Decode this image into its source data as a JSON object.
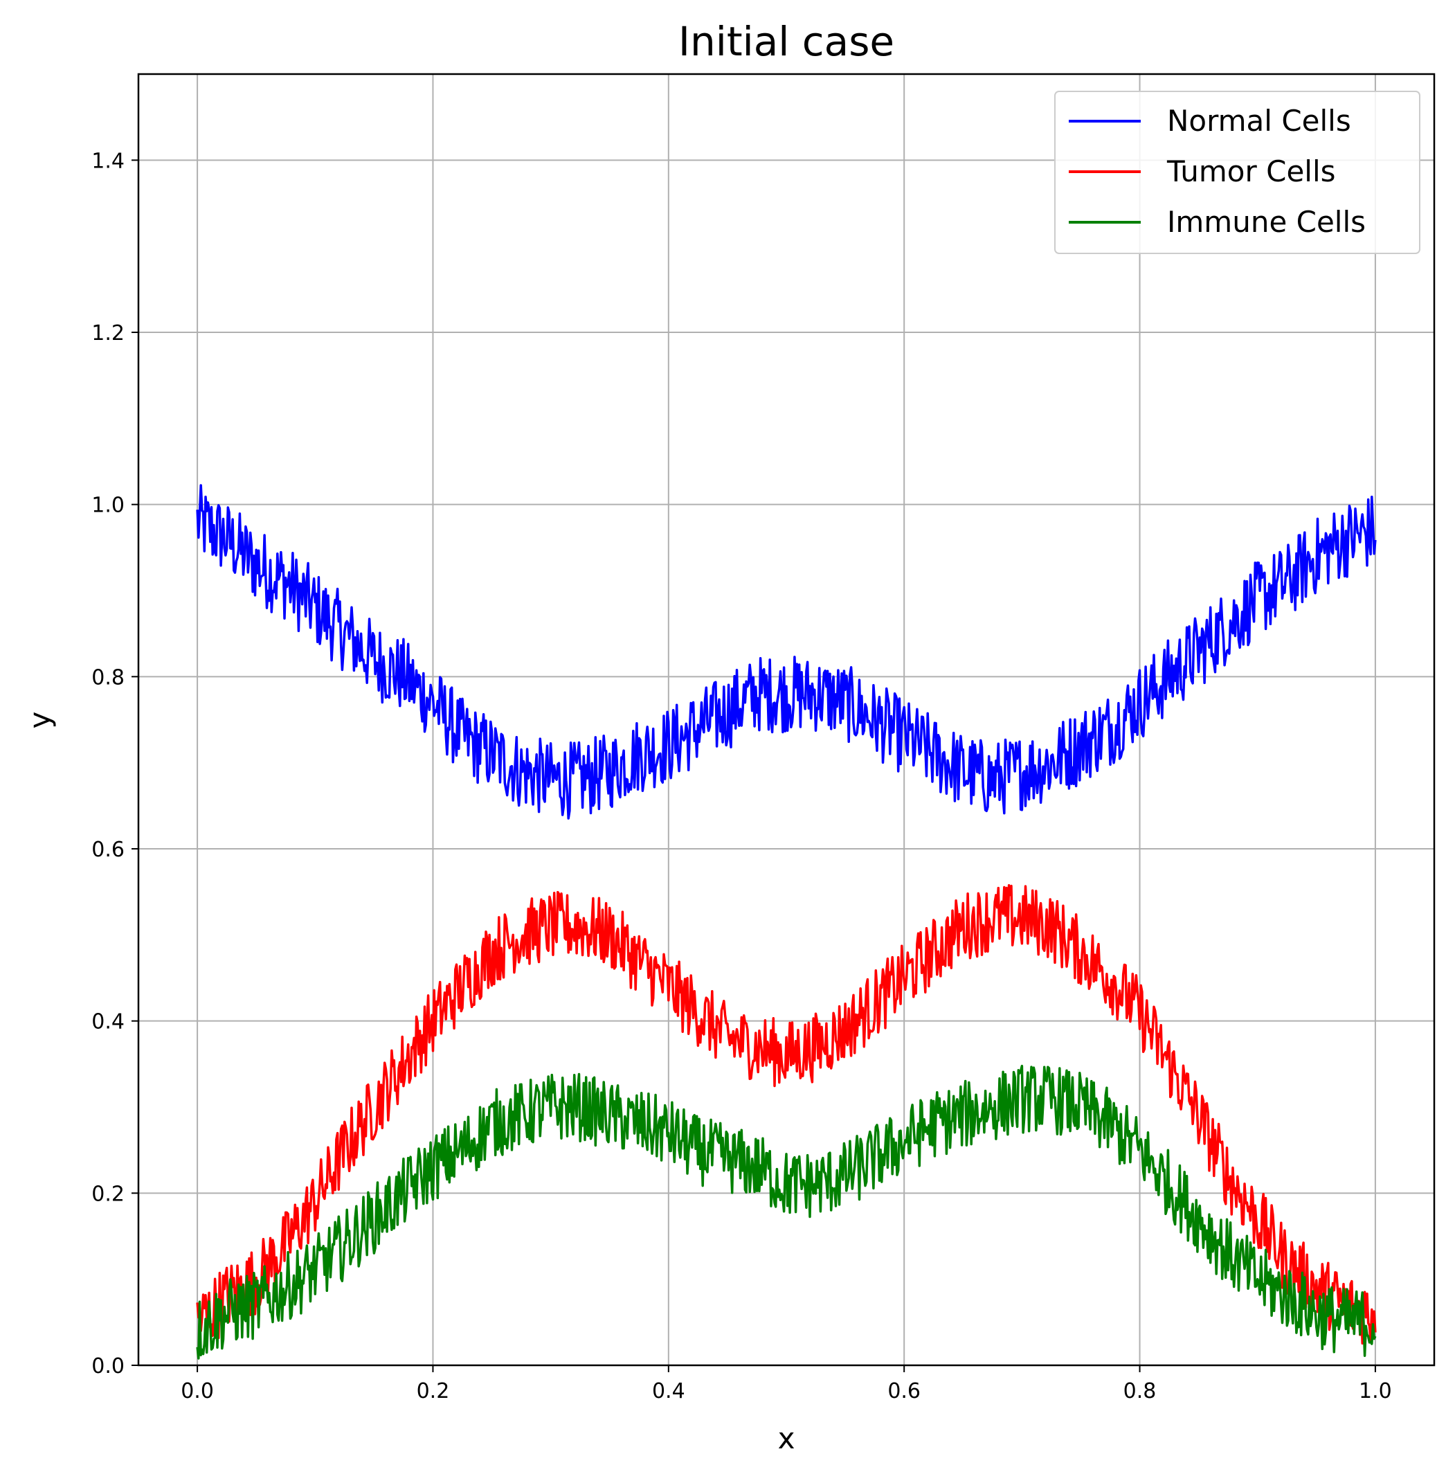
{
  "chart_data": {
    "type": "line",
    "title": "Initial case",
    "xlabel": "x",
    "ylabel": "y",
    "xlim": [
      -0.05,
      1.05
    ],
    "ylim": [
      0.0,
      1.5
    ],
    "xticks": [
      0.0,
      0.2,
      0.4,
      0.6,
      0.8,
      1.0
    ],
    "xtick_labels": [
      "0.0",
      "0.2",
      "0.4",
      "0.6",
      "0.8",
      "1.0"
    ],
    "yticks": [
      0.0,
      0.2,
      0.4,
      0.6,
      0.8,
      1.0,
      1.2,
      1.4
    ],
    "ytick_labels": [
      "0.0",
      "0.2",
      "0.4",
      "0.6",
      "0.8",
      "1.0",
      "1.2",
      "1.4"
    ],
    "grid": true,
    "legend_position": "top-right",
    "x": [
      0.0,
      0.025,
      0.05,
      0.075,
      0.1,
      0.125,
      0.15,
      0.175,
      0.2,
      0.225,
      0.25,
      0.275,
      0.3,
      0.325,
      0.35,
      0.375,
      0.4,
      0.425,
      0.45,
      0.475,
      0.5,
      0.525,
      0.55,
      0.575,
      0.6,
      0.625,
      0.65,
      0.675,
      0.7,
      0.725,
      0.75,
      0.775,
      0.8,
      0.825,
      0.85,
      0.875,
      0.9,
      0.925,
      0.95,
      0.975,
      1.0
    ],
    "series": [
      {
        "name": "Normal Cells",
        "color": "#0000ff",
        "values": [
          0.98,
          0.96,
          0.93,
          0.91,
          0.88,
          0.85,
          0.82,
          0.8,
          0.77,
          0.73,
          0.71,
          0.69,
          0.68,
          0.68,
          0.69,
          0.71,
          0.72,
          0.74,
          0.76,
          0.78,
          0.78,
          0.78,
          0.77,
          0.75,
          0.73,
          0.71,
          0.69,
          0.68,
          0.69,
          0.7,
          0.72,
          0.74,
          0.77,
          0.8,
          0.83,
          0.86,
          0.89,
          0.91,
          0.94,
          0.96,
          0.97
        ]
      },
      {
        "name": "Tumor Cells",
        "color": "#ff0000",
        "values": [
          0.05,
          0.08,
          0.1,
          0.14,
          0.19,
          0.25,
          0.3,
          0.35,
          0.4,
          0.44,
          0.48,
          0.5,
          0.51,
          0.51,
          0.5,
          0.47,
          0.44,
          0.41,
          0.38,
          0.37,
          0.36,
          0.37,
          0.39,
          0.42,
          0.45,
          0.48,
          0.51,
          0.52,
          0.52,
          0.51,
          0.48,
          0.45,
          0.41,
          0.35,
          0.29,
          0.22,
          0.17,
          0.12,
          0.09,
          0.07,
          0.06
        ]
      },
      {
        "name": "Immune Cells",
        "color": "#008000",
        "values": [
          0.04,
          0.06,
          0.07,
          0.09,
          0.11,
          0.14,
          0.17,
          0.2,
          0.23,
          0.25,
          0.28,
          0.29,
          0.3,
          0.3,
          0.29,
          0.28,
          0.27,
          0.25,
          0.24,
          0.23,
          0.21,
          0.21,
          0.22,
          0.24,
          0.26,
          0.28,
          0.29,
          0.3,
          0.31,
          0.31,
          0.3,
          0.28,
          0.25,
          0.21,
          0.17,
          0.13,
          0.1,
          0.08,
          0.06,
          0.05,
          0.05
        ]
      }
    ]
  }
}
